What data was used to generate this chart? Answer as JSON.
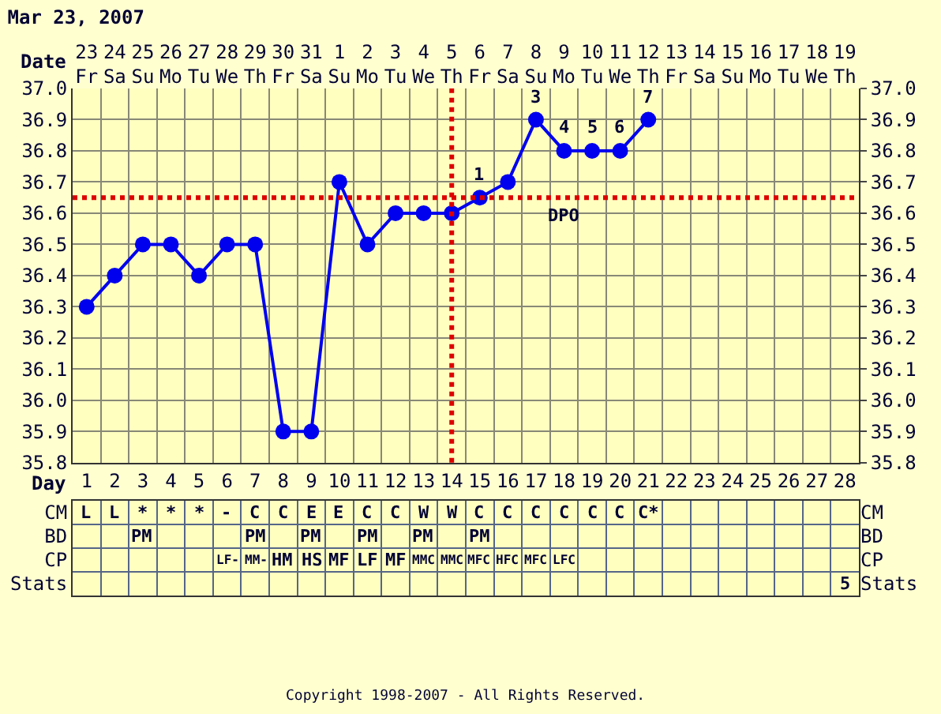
{
  "chart_data": [
    {
      "type": "line",
      "title": "Mar 23, 2007",
      "xlabel": "Day",
      "x2label": "Date",
      "x": [
        1,
        2,
        3,
        4,
        5,
        6,
        7,
        8,
        9,
        10,
        11,
        12,
        13,
        14,
        15,
        16,
        17,
        18,
        19,
        20,
        21
      ],
      "series": [
        {
          "color": "#0000ee",
          "values": [
            36.3,
            36.4,
            36.5,
            36.5,
            36.4,
            36.5,
            36.5,
            35.9,
            35.9,
            36.7,
            36.5,
            36.6,
            36.6,
            36.6,
            36.65,
            36.7,
            36.9,
            36.8,
            36.8,
            36.8,
            36.9
          ]
        }
      ],
      "xlim": [
        0.5,
        28.5
      ],
      "xticks": [
        1,
        2,
        3,
        4,
        5,
        6,
        7,
        8,
        9,
        10,
        11,
        12,
        13,
        14,
        15,
        16,
        17,
        18,
        19,
        20,
        21,
        22,
        23,
        24,
        25,
        26,
        27,
        28
      ],
      "x2lim": [
        "2007-03-22T12:00",
        "2007-04-19T12:00"
      ],
      "x2ticks": [
        {
          "value": "2007-03-23",
          "label": "23 Fr"
        },
        {
          "value": "2007-03-24",
          "label": "24 Sa"
        },
        {
          "value": "2007-03-25",
          "label": "25 Su"
        },
        {
          "value": "2007-03-26",
          "label": "26 Mo"
        },
        {
          "value": "2007-03-27",
          "label": "27 Tu"
        },
        {
          "value": "2007-03-28",
          "label": "28 We"
        },
        {
          "value": "2007-03-29",
          "label": "29 Th"
        },
        {
          "value": "2007-03-30",
          "label": "30 Fr"
        },
        {
          "value": "2007-03-31",
          "label": "31 Sa"
        },
        {
          "value": "2007-04-01",
          "label": "1 Su"
        },
        {
          "value": "2007-04-02",
          "label": "2 Mo"
        },
        {
          "value": "2007-04-03",
          "label": "3 Tu"
        },
        {
          "value": "2007-04-04",
          "label": "4 We"
        },
        {
          "value": "2007-04-05",
          "label": "5 Th"
        },
        {
          "value": "2007-04-06",
          "label": "6 Fr"
        },
        {
          "value": "2007-04-07",
          "label": "7 Sa"
        },
        {
          "value": "2007-04-08",
          "label": "8 Su"
        },
        {
          "value": "2007-04-09",
          "label": "9 Mo"
        },
        {
          "value": "2007-04-10",
          "label": "10 Tu"
        },
        {
          "value": "2007-04-11",
          "label": "11 We"
        },
        {
          "value": "2007-04-12",
          "label": "12 Th"
        },
        {
          "value": "2007-04-13",
          "label": "13 Fr"
        },
        {
          "value": "2007-04-14",
          "label": "14 Sa"
        },
        {
          "value": "2007-04-15",
          "label": "15 Su"
        },
        {
          "value": "2007-04-16",
          "label": "16 Mo"
        },
        {
          "value": "2007-04-17",
          "label": "17 Tu"
        },
        {
          "value": "2007-04-18",
          "label": "18 We"
        },
        {
          "value": "2007-04-19",
          "label": "19 Th"
        }
      ],
      "ylim": [
        35.8,
        37.0
      ],
      "yticks": [
        {
          "value": 35.8,
          "label": "35.8"
        },
        {
          "value": 35.9,
          "label": "35.9"
        },
        {
          "value": 36.0,
          "label": "36.0"
        },
        {
          "value": 36.1,
          "label": "36.1"
        },
        {
          "value": 36.2,
          "label": "36.2"
        },
        {
          "value": 36.3,
          "label": "36.3"
        },
        {
          "value": 36.4,
          "label": "36.4"
        },
        {
          "value": 36.5,
          "label": "36.5"
        },
        {
          "value": 36.6,
          "label": "36.6"
        },
        {
          "value": 36.7,
          "label": "36.7"
        },
        {
          "value": 36.8,
          "label": "36.8"
        },
        {
          "value": 36.9,
          "label": "36.9"
        },
        {
          "value": 37.0,
          "label": "37.0"
        }
      ],
      "y2lim": [
        35.8,
        37.0
      ],
      "y2ticks": [
        {
          "value": 35.8,
          "label": "35.8"
        },
        {
          "value": 35.9,
          "label": "35.9"
        },
        {
          "value": 36.0,
          "label": "36.0"
        },
        {
          "value": 36.1,
          "label": "36.1"
        },
        {
          "value": 36.2,
          "label": "36.2"
        },
        {
          "value": 36.3,
          "label": "36.3"
        },
        {
          "value": 36.4,
          "label": "36.4"
        },
        {
          "value": 36.5,
          "label": "36.5"
        },
        {
          "value": 36.6,
          "label": "36.6"
        },
        {
          "value": 36.7,
          "label": "36.7"
        },
        {
          "value": 36.8,
          "label": "36.8"
        },
        {
          "value": 36.9,
          "label": "36.9"
        },
        {
          "value": 37.0,
          "label": "37.0"
        }
      ],
      "ref_lines": [
        {
          "axis": "x",
          "value": 14,
          "color": "#dd0000",
          "line_style": "dotted"
        },
        {
          "axis": "y",
          "value": 36.65,
          "color": "#dd0000",
          "line_style": "dotted",
          "label": "DPO"
        }
      ],
      "annotations": [
        {
          "text": "1",
          "x": 15,
          "y": 36.65
        },
        {
          "text": "3",
          "x": 17,
          "y": 36.9
        },
        {
          "text": "4",
          "x": 18,
          "y": 36.8
        },
        {
          "text": "5",
          "x": 19,
          "y": 36.8
        },
        {
          "text": "6",
          "x": 20,
          "y": 36.8
        },
        {
          "text": "7",
          "x": 21,
          "y": 36.9
        },
        "Copyright 1998-2007 - All Rights Reserved."
      ],
      "grid": true,
      "marker": "circle",
      "line_style": "solid"
    },
    {
      "type": "heatmap",
      "categories": [
        null,
        null,
        null,
        null,
        null,
        null,
        null,
        null,
        null,
        null,
        null,
        null,
        null,
        null,
        null,
        null,
        null,
        null,
        null,
        null,
        null,
        null,
        null,
        null,
        null,
        null,
        null,
        null
      ],
      "y_categories": [
        "CM",
        "BD",
        "CP",
        "Stats"
      ],
      "y2_categories": [
        "CM",
        "BD",
        "CP",
        "Stats"
      ],
      "cells": [
        [
          null,
          null,
          null,
          null,
          null,
          null,
          null,
          null,
          null,
          null,
          null,
          null,
          null,
          null,
          null,
          null,
          null,
          null,
          null,
          null,
          null,
          null,
          null,
          null,
          null,
          null,
          null,
          null
        ],
        [
          null,
          null,
          null,
          null,
          null,
          null,
          null,
          null,
          null,
          null,
          null,
          null,
          null,
          null,
          null,
          null,
          null,
          null,
          null,
          null,
          null,
          null,
          null,
          null,
          null,
          null,
          null,
          null
        ],
        [
          null,
          null,
          null,
          null,
          null,
          null,
          null,
          null,
          null,
          null,
          null,
          null,
          null,
          null,
          null,
          null,
          null,
          null,
          null,
          null,
          null,
          null,
          null,
          null,
          null,
          null,
          null,
          null
        ],
        [
          null,
          null,
          null,
          null,
          null,
          null,
          null,
          null,
          null,
          null,
          null,
          null,
          null,
          null,
          null,
          null,
          null,
          null,
          null,
          null,
          null,
          null,
          null,
          null,
          null,
          null,
          null,
          null
        ]
      ],
      "cell_labels": [
        [
          "L",
          "L",
          "*",
          "*",
          "*",
          "-",
          "C",
          "C",
          "E",
          "E",
          "C",
          "C",
          "W",
          "W",
          "C",
          "C",
          "C",
          "C",
          "C",
          "C",
          "C*",
          null,
          null,
          null,
          null,
          null,
          null,
          null
        ],
        [
          null,
          null,
          "PM",
          null,
          null,
          null,
          "PM",
          null,
          "PM",
          null,
          "PM",
          null,
          "PM",
          null,
          "PM",
          null,
          null,
          null,
          null,
          null,
          null,
          null,
          null,
          null,
          null,
          null,
          null,
          null
        ],
        [
          null,
          null,
          null,
          null,
          null,
          "LF-",
          "MM-",
          "HM",
          "HS",
          "MF",
          "LF",
          "MF",
          "MMC",
          "MMC",
          "MFC",
          "HFC",
          "MFC",
          "LFC",
          null,
          null,
          null,
          null,
          null,
          null,
          null,
          null,
          null,
          null
        ],
        [
          null,
          null,
          null,
          null,
          null,
          null,
          null,
          null,
          null,
          null,
          null,
          null,
          null,
          null,
          null,
          null,
          null,
          null,
          null,
          null,
          null,
          null,
          null,
          null,
          null,
          null,
          null,
          "5"
        ]
      ]
    }
  ]
}
